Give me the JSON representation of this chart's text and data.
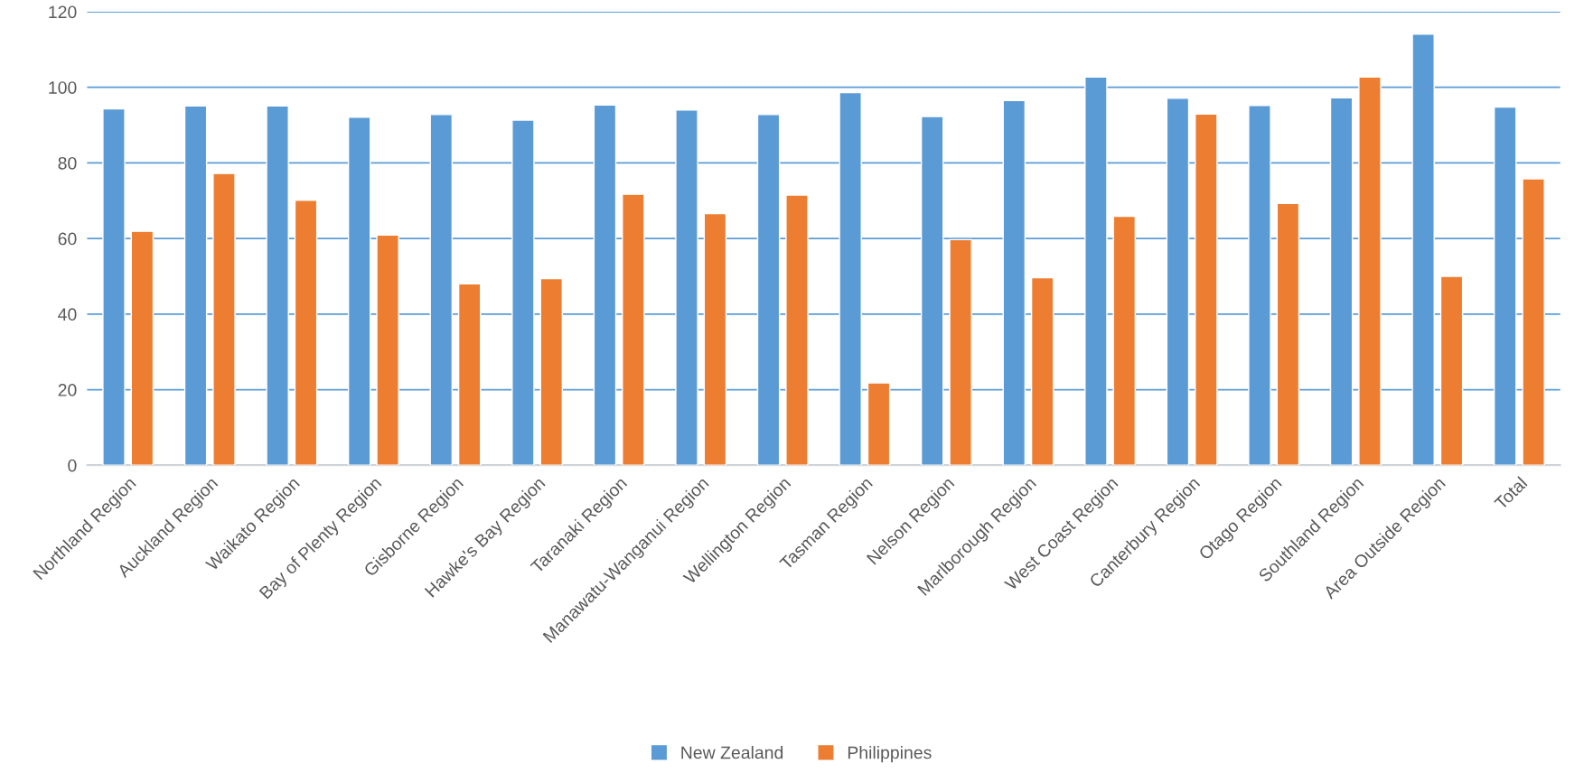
{
  "chart_data": {
    "type": "bar",
    "categories": [
      "Northland Region",
      "Auckland Region",
      "Waikato Region",
      "Bay of Plenty Region",
      "Gisborne Region",
      "Hawke's Bay Region",
      "Taranaki Region",
      "Manawatu-Wanganui Region",
      "Wellington Region",
      "Tasman Region",
      "Nelson Region",
      "Marlborough Region",
      "West Coast Region",
      "Canterbury Region",
      "Otago Region",
      "Southland Region",
      "Area Outside Region",
      "Total"
    ],
    "series": [
      {
        "name": "New Zealand",
        "color": "#5b9bd5",
        "values": [
          94.3,
          95.1,
          95.1,
          92.1,
          92.8,
          91.3,
          95.3,
          94.0,
          92.8,
          98.6,
          92.3,
          96.5,
          102.7,
          97.1,
          95.2,
          97.2,
          114.1,
          94.8
        ]
      },
      {
        "name": "Philippines",
        "color": "#ed7d31",
        "values": [
          61.9,
          77.2,
          70.1,
          60.9,
          48.0,
          49.4,
          71.7,
          66.6,
          71.5,
          21.8,
          59.7,
          49.6,
          65.9,
          92.9,
          69.3,
          102.7,
          50.0,
          75.8
        ]
      }
    ],
    "ylim": [
      0,
      120
    ],
    "yticks": [
      0,
      20,
      40,
      60,
      80,
      100,
      120
    ],
    "grid": "y",
    "legend": "bottom"
  }
}
